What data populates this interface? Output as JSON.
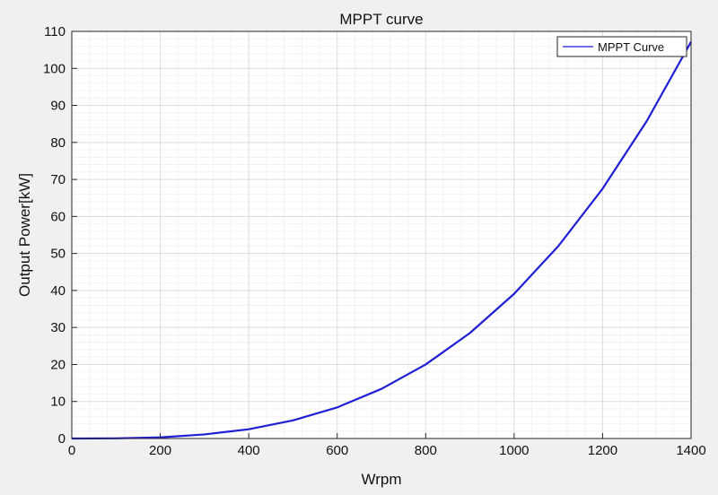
{
  "chart_data": {
    "type": "line",
    "title": "MPPT curve",
    "xlabel": "Wrpm",
    "ylabel": "Output Power[kW]",
    "xlim": [
      0,
      1400
    ],
    "ylim": [
      0,
      110
    ],
    "xticks": [
      0,
      200,
      400,
      600,
      800,
      1000,
      1200,
      1400
    ],
    "yticks": [
      0,
      10,
      20,
      30,
      40,
      50,
      60,
      70,
      80,
      90,
      100,
      110
    ],
    "xtick_labels": [
      "0",
      "200",
      "400",
      "600",
      "800",
      "1000",
      "1200",
      "1400"
    ],
    "ytick_labels": [
      "0",
      "10",
      "20",
      "30",
      "40",
      "50",
      "60",
      "70",
      "80",
      "90",
      "100",
      "110"
    ],
    "grid": true,
    "minor_grid": true,
    "legend_position": "top-right",
    "series": [
      {
        "name": "MPPT Curve",
        "color": "#1f1fd6",
        "x": [
          0,
          100,
          200,
          300,
          400,
          500,
          600,
          700,
          800,
          900,
          1000,
          1100,
          1200,
          1300,
          1400
        ],
        "y": [
          0,
          0.04,
          0.31,
          1.1,
          2.5,
          4.9,
          8.4,
          13.4,
          20.0,
          28.5,
          39.1,
          52.0,
          67.5,
          85.8,
          107.2
        ]
      }
    ]
  }
}
